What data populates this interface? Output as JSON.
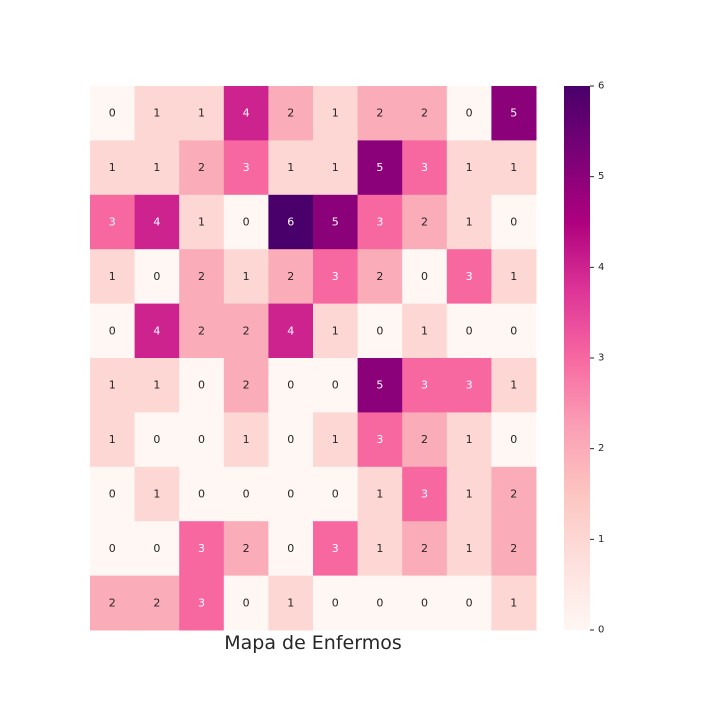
{
  "chart_data": {
    "type": "heatmap",
    "title": "Mapa de Enfermos",
    "xlabel": "",
    "ylabel": "",
    "rows": 10,
    "cols": 10,
    "values": [
      [
        0,
        1,
        1,
        4,
        2,
        1,
        2,
        2,
        0,
        5
      ],
      [
        1,
        1,
        2,
        3,
        1,
        1,
        5,
        3,
        1,
        1
      ],
      [
        3,
        4,
        1,
        0,
        6,
        5,
        3,
        2,
        1,
        0
      ],
      [
        1,
        0,
        2,
        1,
        2,
        3,
        2,
        0,
        3,
        1
      ],
      [
        0,
        4,
        2,
        2,
        4,
        1,
        0,
        1,
        0,
        0
      ],
      [
        1,
        1,
        0,
        2,
        0,
        0,
        5,
        3,
        3,
        1
      ],
      [
        1,
        0,
        0,
        1,
        0,
        1,
        3,
        2,
        1,
        0
      ],
      [
        0,
        1,
        0,
        0,
        0,
        0,
        1,
        3,
        1,
        2
      ],
      [
        0,
        0,
        3,
        2,
        0,
        3,
        1,
        2,
        1,
        2
      ],
      [
        2,
        2,
        3,
        0,
        1,
        0,
        0,
        0,
        0,
        1
      ]
    ],
    "annotations": true,
    "colormap": "RdPu",
    "vmin": 0,
    "vmax": 6,
    "colorbar": {
      "ticks": [
        0,
        1,
        2,
        3,
        4,
        5,
        6
      ]
    },
    "axis_ticks_visible": false,
    "grid": false
  }
}
